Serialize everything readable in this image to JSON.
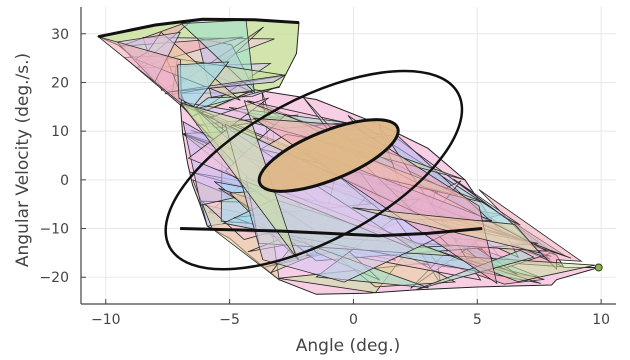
{
  "chart_data": {
    "type": "area",
    "title": "",
    "xlabel": "Angle (deg.)",
    "ylabel": "Angular Velocity (deg./s.)",
    "xlim": [
      -11,
      10.6
    ],
    "ylim": [
      -25.5,
      35.5
    ],
    "xticks": [
      -10,
      -5,
      0,
      5,
      10
    ],
    "xtick_labels": [
      "−10",
      "−5",
      "0",
      "5",
      "10"
    ],
    "yticks": [
      -20,
      -10,
      0,
      10,
      20,
      30
    ],
    "ytick_labels": [
      "−20",
      "−10",
      "0",
      "10",
      "20",
      "30"
    ],
    "grid": true,
    "legend": "none",
    "reachable_region_outline": [
      [
        -10.3,
        29.4
      ],
      [
        -8.0,
        31.8
      ],
      [
        -6.1,
        33.0
      ],
      [
        -4.0,
        32.9
      ],
      [
        -2.2,
        32.3
      ],
      [
        -2.3,
        26.0
      ],
      [
        -3.0,
        19.0
      ],
      [
        -4.0,
        18.0
      ],
      [
        -6.5,
        13.0
      ],
      [
        -7.0,
        16.0
      ],
      [
        -8.8,
        24.8
      ],
      [
        -9.5,
        27.7
      ],
      [
        -10.3,
        29.4
      ]
    ],
    "reachable_region_main": [
      [
        -7.0,
        16.0
      ],
      [
        -6.5,
        13.0
      ],
      [
        -4.0,
        18.5
      ],
      [
        -1.5,
        16.5
      ],
      [
        1.0,
        11.5
      ],
      [
        3.0,
        6.5
      ],
      [
        4.5,
        0.0
      ],
      [
        5.3,
        -6.0
      ],
      [
        5.8,
        -10.0
      ],
      [
        6.3,
        -11.5
      ],
      [
        7.3,
        -13.5
      ],
      [
        8.2,
        -15.5
      ],
      [
        8.5,
        -18.0
      ],
      [
        9.9,
        -18.0
      ],
      [
        8.2,
        -20.5
      ],
      [
        8.0,
        -21.6
      ],
      [
        5.0,
        -22.0
      ],
      [
        2.5,
        -22.6
      ],
      [
        0.5,
        -23.3
      ],
      [
        -1.5,
        -23.5
      ],
      [
        -3.0,
        -20.5
      ],
      [
        -4.2,
        -15.5
      ],
      [
        -5.0,
        -12.0
      ],
      [
        -5.9,
        -9.5
      ],
      [
        -6.2,
        -5.0
      ],
      [
        -6.5,
        -1.0
      ],
      [
        -6.7,
        3.5
      ],
      [
        -6.9,
        9.5
      ],
      [
        -7.0,
        16.0
      ]
    ],
    "invariant_ellipse": {
      "center": [
        -1.0,
        5.0
      ],
      "semi_axis_x": 3.0,
      "semi_axis_y": 5.0
    },
    "large_ellipse": {
      "center": [
        -1.6,
        2.0
      ],
      "semi_axis_x": 6.6,
      "semi_axis_y": 14.6
    },
    "boundary_curves": [
      [
        [
          -10.3,
          29.4
        ],
        [
          -8.0,
          31.8
        ],
        [
          -6.1,
          33.0
        ],
        [
          -4.0,
          32.9
        ],
        [
          -2.2,
          32.3
        ]
      ],
      [
        [
          -7.0,
          -10.0
        ],
        [
          -3.0,
          -10.5
        ],
        [
          1.0,
          -11.5
        ],
        [
          3.0,
          -11.0
        ],
        [
          5.2,
          -10.0
        ]
      ]
    ],
    "end_point": [
      9.9,
      -18.0
    ],
    "fill_colors": [
      "#f7c5e0",
      "#9fdcf5",
      "#d3c6f5",
      "#c9e09f",
      "#f2a6b5",
      "#e7d29b",
      "#9ee0cf",
      "#c6b8f0"
    ],
    "ellipse_fill": "#deb887",
    "outline_color": "#000000",
    "grid_color": "#e8e8e8",
    "axis_color": "#444444"
  }
}
